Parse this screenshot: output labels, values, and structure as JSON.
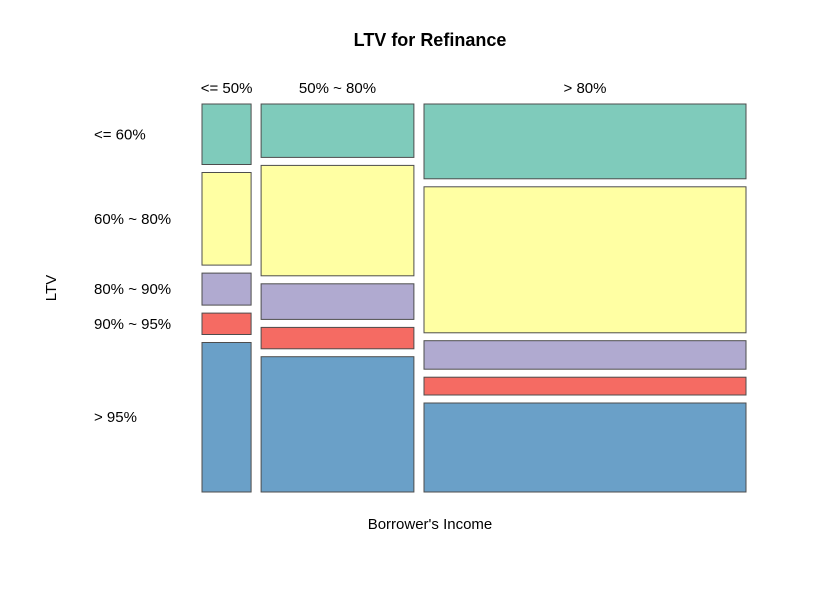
{
  "chart_data": {
    "type": "mosaic",
    "title": "LTV for Refinance",
    "xlabel": "Borrower's Income",
    "ylabel": "LTV",
    "x_categories": [
      "<= 50%",
      "50% ~ 80%",
      "> 80%"
    ],
    "x_proportions": [
      0.09,
      0.28,
      0.59
    ],
    "y_categories": [
      "<= 60%",
      "60% ~ 80%",
      "80% ~ 90%",
      "90% ~ 95%",
      "> 95%"
    ],
    "y_category_colors": [
      "#7fcbbb",
      "#ffffa3",
      "#b0aad0",
      "#f56b63",
      "#6aa0c8"
    ],
    "conditional_proportions": [
      {
        "x": "<= 50%",
        "values": [
          0.17,
          0.26,
          0.09,
          0.06,
          0.42
        ]
      },
      {
        "x": "50% ~ 80%",
        "values": [
          0.15,
          0.31,
          0.1,
          0.06,
          0.38
        ]
      },
      {
        "x": "> 80%",
        "values": [
          0.21,
          0.41,
          0.08,
          0.05,
          0.25
        ]
      }
    ]
  }
}
